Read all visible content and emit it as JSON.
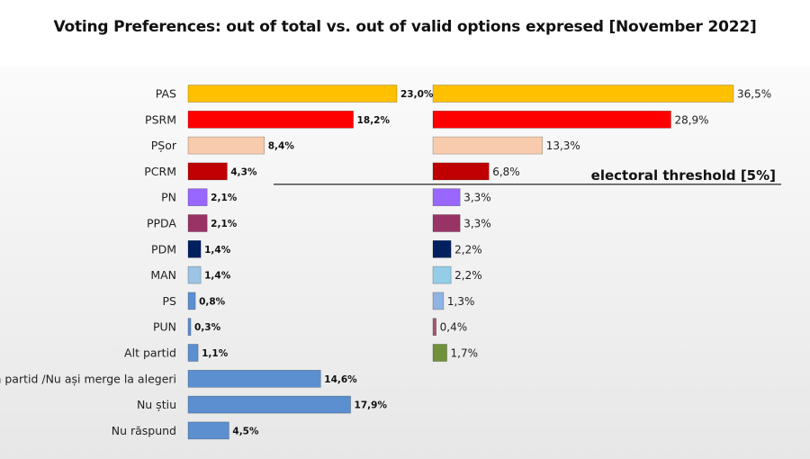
{
  "title": "Voting Preferences: out of total vs. out of valid options expresed [November 2022]",
  "chart_data": [
    {
      "type": "bar",
      "orientation": "horizontal",
      "categories": [
        "PAS",
        "PSRM",
        "PȘor",
        "PCRM",
        "PN",
        "PPDA",
        "PDM",
        "MAN",
        "PS",
        "PUN",
        "Alt partid",
        "un partid /Nu ași merge la alegeri",
        "Nu știu",
        "Nu răspund"
      ],
      "values": [
        23.0,
        18.2,
        8.4,
        4.3,
        2.1,
        2.1,
        1.4,
        1.4,
        0.8,
        0.3,
        1.1,
        14.6,
        17.9,
        4.5
      ],
      "value_labels": [
        "23,0%",
        "18,2%",
        "8,4%",
        "4,3%",
        "2,1%",
        "2,1%",
        "1,4%",
        "1,4%",
        "0,8%",
        "0,3%",
        "1,1%",
        "14,6%",
        "17,9%",
        "4,5%"
      ],
      "colors": [
        "#ffc000",
        "#ff0000",
        "#f8cbad",
        "#c00000",
        "#9966ff",
        "#993366",
        "#002060",
        "#9dc3e6",
        "#5b8fd0",
        "#5b8fd0",
        "#5b8fd0",
        "#5b8fd0",
        "#5b8fd0",
        "#5b8fd0"
      ],
      "xlim": [
        0,
        23.0
      ]
    },
    {
      "type": "bar",
      "orientation": "horizontal",
      "categories": [
        "PAS",
        "PSRM",
        "PȘor",
        "PCRM",
        "PN",
        "PPDA",
        "PDM",
        "MAN",
        "PS",
        "PUN",
        "Alt partid"
      ],
      "values": [
        36.5,
        28.9,
        13.3,
        6.8,
        3.3,
        3.3,
        2.2,
        2.2,
        1.3,
        0.4,
        1.7
      ],
      "value_labels": [
        "36,5%",
        "28,9%",
        "13,3%",
        "6,8%",
        "3,3%",
        "3,3%",
        "2,2%",
        "2,2%",
        "1,3%",
        "0,4%",
        "1,7%"
      ],
      "colors": [
        "#ffc000",
        "#ff0000",
        "#f8cbad",
        "#c00000",
        "#9966ff",
        "#993366",
        "#002060",
        "#93cde8",
        "#8fb4e3",
        "#a5566e",
        "#70913a"
      ],
      "xlim": [
        0,
        36.5
      ],
      "annotations": [
        {
          "text": "electoral threshold [5%]",
          "at_value": 5
        }
      ]
    }
  ]
}
